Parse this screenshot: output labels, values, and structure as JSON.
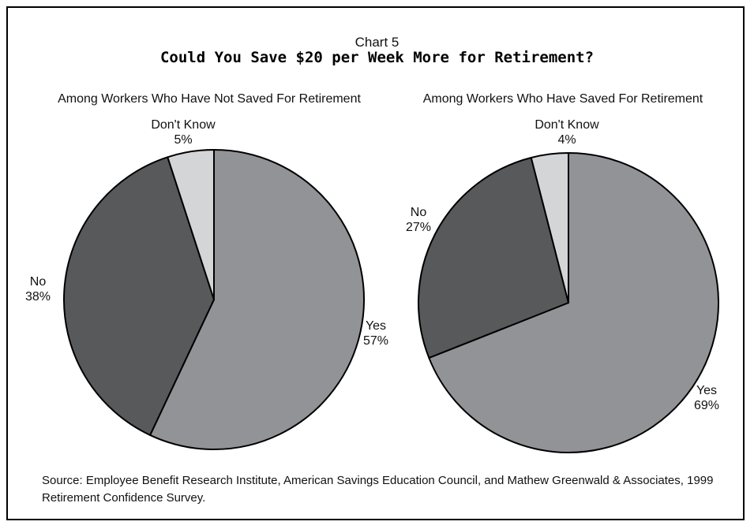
{
  "chart": {
    "number_label": "Chart 5",
    "title": "Could You Save $20 per Week More for Retirement?",
    "source": "Source: Employee Benefit Research Institute, American Savings Education Council, and Mathew Greenwald & Associates, 1999 Retirement Confidence Survey."
  },
  "colors": {
    "yes": "#929396",
    "no": "#57595b",
    "dont_know": "#d4d5d7",
    "outline": "#000000"
  },
  "chart_data": [
    {
      "type": "pie",
      "title": "Among Workers Who Have Not Saved For Retirement",
      "slices": [
        {
          "label": "Yes",
          "value": 57,
          "value_label": "57%"
        },
        {
          "label": "No",
          "value": 38,
          "value_label": "38%"
        },
        {
          "label": "Don't Know",
          "value": 5,
          "value_label": "5%"
        }
      ]
    },
    {
      "type": "pie",
      "title": "Among Workers Who Have Saved For Retirement",
      "slices": [
        {
          "label": "Yes",
          "value": 69,
          "value_label": "69%"
        },
        {
          "label": "No",
          "value": 27,
          "value_label": "27%"
        },
        {
          "label": "Don't Know",
          "value": 4,
          "value_label": "4%"
        }
      ]
    }
  ]
}
